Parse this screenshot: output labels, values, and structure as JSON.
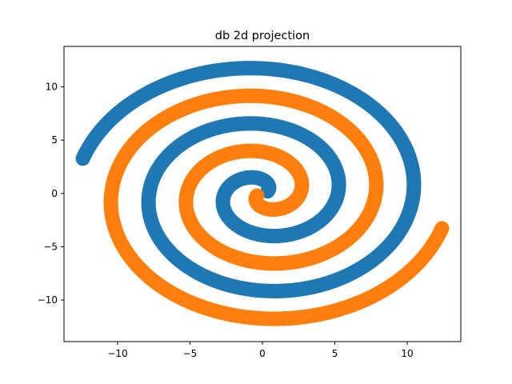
{
  "chart_data": {
    "type": "scatter",
    "title": "db 2d projection",
    "xlabel": "",
    "ylabel": "",
    "xlim": [
      -13.7,
      13.7
    ],
    "ylim": [
      -13.9,
      13.8
    ],
    "xticks": [
      -10,
      -5,
      0,
      5,
      10
    ],
    "yticks": [
      -10,
      -5,
      0,
      5,
      10
    ],
    "grid": false,
    "legend": "none",
    "series": [
      {
        "color": "#1f77b4",
        "spiral": {
          "radius_per_radian": 0.83,
          "theta_start": 0.5,
          "theta_end": 15.45,
          "angle_offset_deg": 0,
          "band_width": 1.0
        }
      },
      {
        "color": "#ff7f0e",
        "spiral": {
          "radius_per_radian": 0.83,
          "theta_start": 0.5,
          "theta_end": 15.45,
          "angle_offset_deg": 180,
          "band_width": 1.0
        }
      }
    ]
  }
}
